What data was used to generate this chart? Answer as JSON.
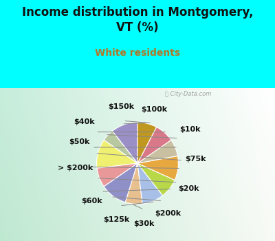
{
  "title": "Income distribution in Montgomery,\nVT (%)",
  "subtitle": "White residents",
  "title_color": "#111111",
  "subtitle_color": "#b07828",
  "bg_color": "#00ffff",
  "labels": [
    "$100k",
    "$10k",
    "$75k",
    "$20k",
    "$200k",
    "$30k",
    "$125k",
    "$60k",
    "> $200k",
    "$50k",
    "$40k",
    "$150k"
  ],
  "values": [
    11,
    5,
    12,
    8,
    11,
    7,
    9,
    8,
    10,
    7,
    8,
    8
  ],
  "colors": [
    "#9b8fc8",
    "#b8c8a0",
    "#f0f070",
    "#e89898",
    "#9090c8",
    "#e8c090",
    "#a8c0e8",
    "#b8d848",
    "#e8a840",
    "#c8c0a0",
    "#d87888",
    "#c09820"
  ],
  "label_fontsize": 8.0,
  "title_fontsize": 12,
  "subtitle_fontsize": 10,
  "watermark": "City-Data.com",
  "label_color": "#111111",
  "startangle": 90
}
